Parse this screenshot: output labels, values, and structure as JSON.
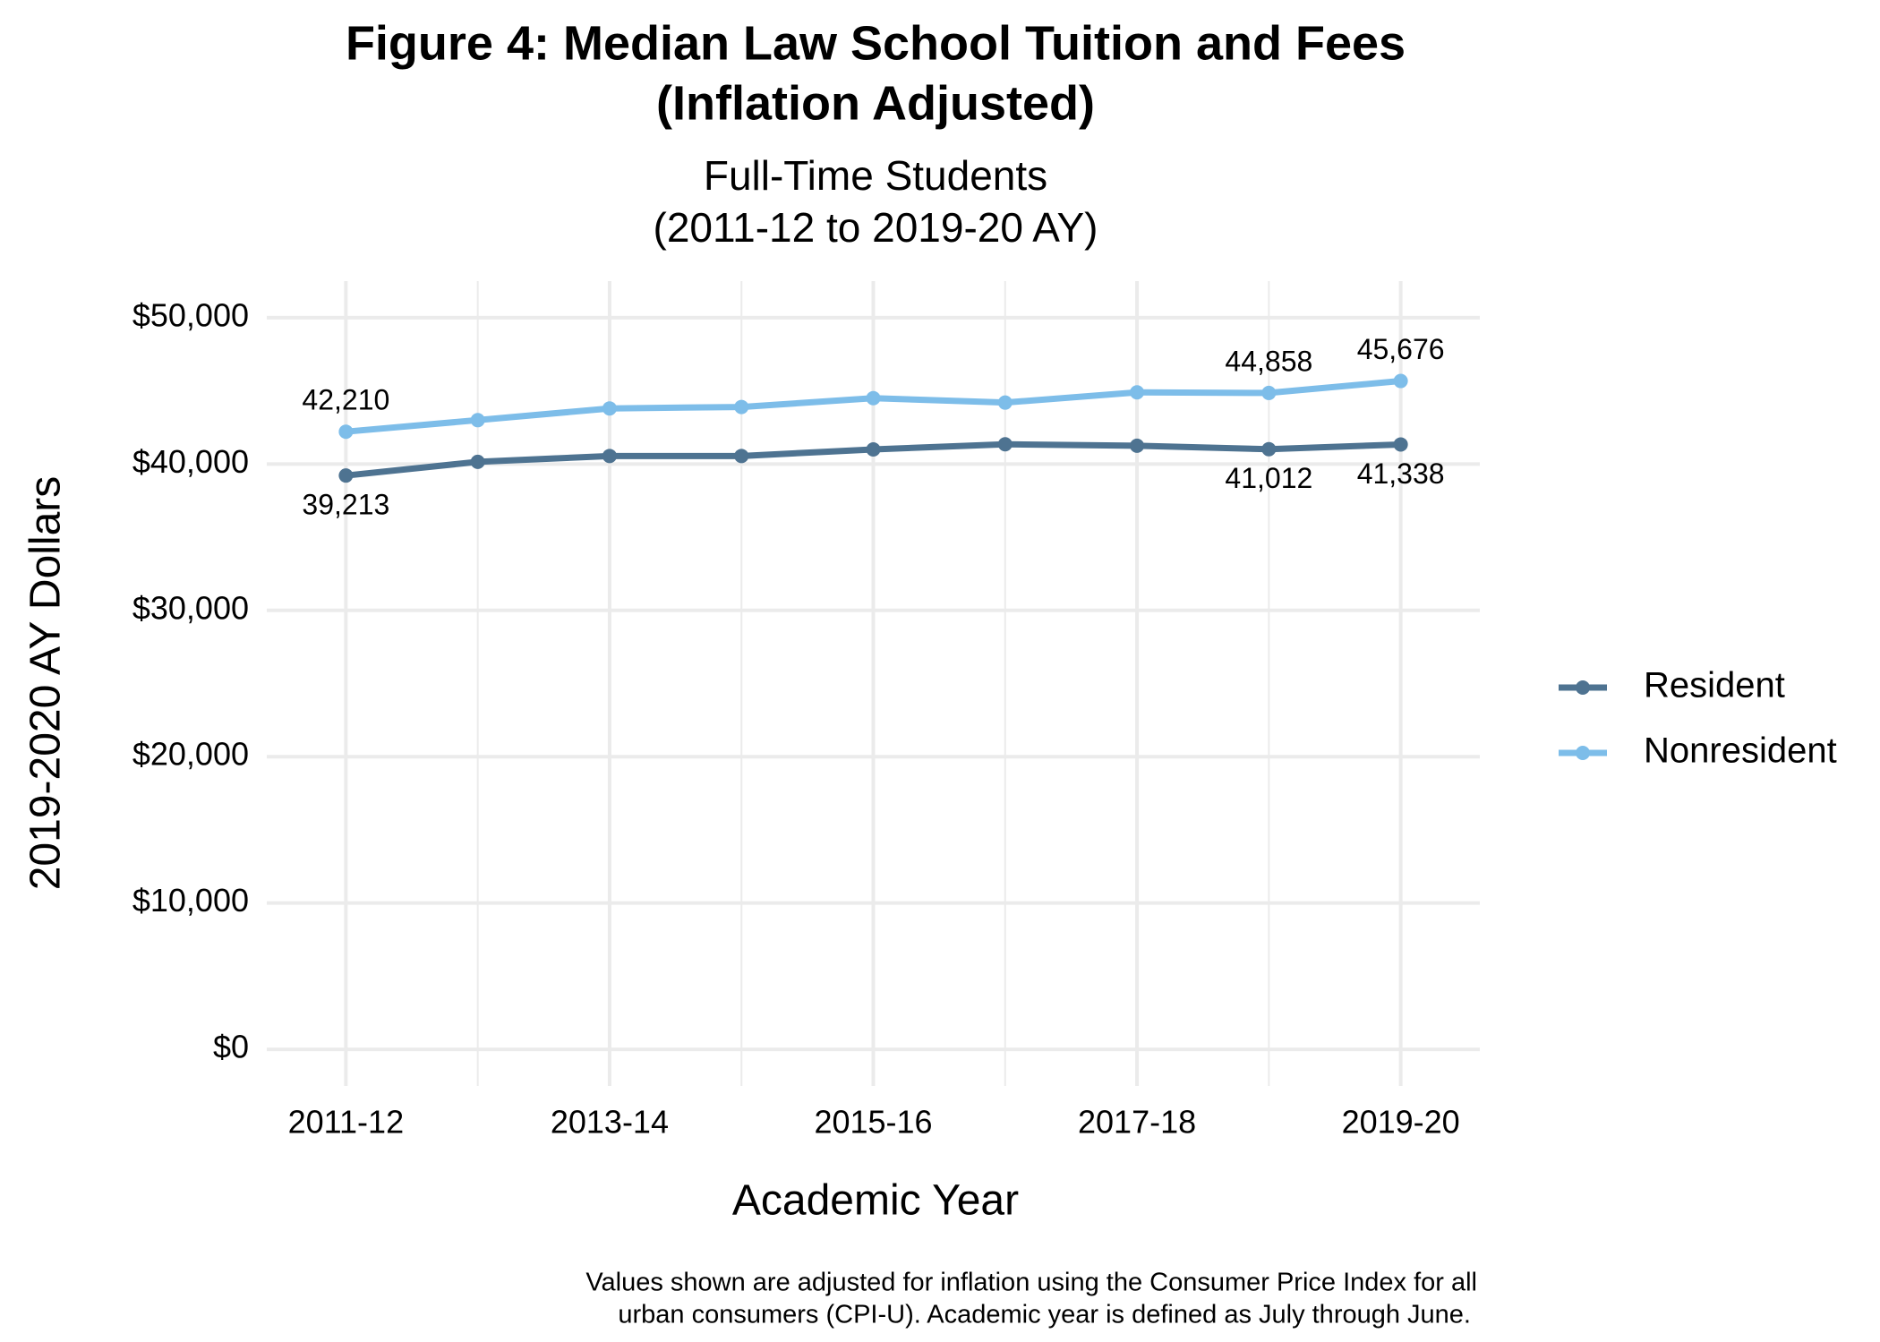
{
  "chart_data": {
    "type": "line",
    "title": [
      "Figure 4: Median Law School Tuition and Fees",
      "(Inflation Adjusted)"
    ],
    "subtitle": [
      "Full-Time Students",
      "(2011-12 to 2019-20 AY)"
    ],
    "x_label": "Academic Year",
    "y_label": "2019-2020 AY Dollars",
    "caption": [
      "Values shown are adjusted for inflation using the Consumer Price Index for all",
      "urban consumers (CPI-U). Academic year is defined as July through June."
    ],
    "categories": [
      "2011-12",
      null,
      "2013-14",
      null,
      "2015-16",
      null,
      "2017-18",
      null,
      "2019-20"
    ],
    "series": [
      {
        "name": "Resident",
        "color": "#4e7391",
        "values": [
          39213,
          40150,
          40550,
          40550,
          41000,
          41350,
          41250,
          41012,
          41338
        ],
        "value_labels": [
          "39,213",
          null,
          null,
          null,
          null,
          null,
          null,
          "41,012",
          "41,338"
        ]
      },
      {
        "name": "Nonresident",
        "color": "#7dbde9",
        "values": [
          42210,
          43000,
          43800,
          43900,
          44500,
          44200,
          44900,
          44858,
          45676
        ],
        "value_labels": [
          "42,210",
          null,
          null,
          null,
          null,
          null,
          null,
          "44,858",
          "45,676"
        ]
      }
    ],
    "ylim": [
      -2500,
      52500
    ],
    "yticks": [
      {
        "value": 0,
        "label": "$0"
      },
      {
        "value": 10000,
        "label": "$10,000"
      },
      {
        "value": 20000,
        "label": "$20,000"
      },
      {
        "value": 30000,
        "label": "$30,000"
      },
      {
        "value": 40000,
        "label": "$40,000"
      },
      {
        "value": 50000,
        "label": "$50,000"
      }
    ],
    "grid": true,
    "legend": "right"
  }
}
